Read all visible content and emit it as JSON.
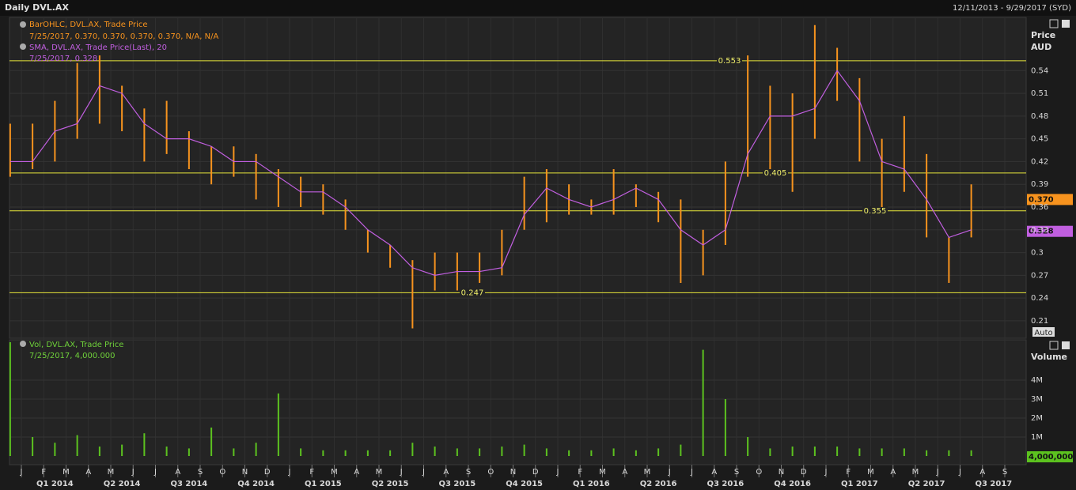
{
  "header": {
    "title": "Daily DVL.AX",
    "range": "12/11/2013 - 9/29/2017 (SYD)"
  },
  "x_axis": {
    "months": [
      "J",
      "F",
      "M",
      "A",
      "M",
      "J",
      "J",
      "A",
      "S",
      "O",
      "N",
      "D",
      "J",
      "F",
      "M",
      "A",
      "M",
      "J",
      "J",
      "A",
      "S",
      "O",
      "N",
      "D",
      "J",
      "F",
      "M",
      "A",
      "M",
      "J",
      "J",
      "A",
      "S",
      "O",
      "N",
      "D",
      "J",
      "F",
      "M",
      "A",
      "M",
      "J",
      "J",
      "A",
      "S"
    ],
    "quarters": [
      "Q1 2014",
      "Q2 2014",
      "Q3 2014",
      "Q4 2014",
      "Q1 2015",
      "Q2 2015",
      "Q3 2015",
      "Q4 2015",
      "Q1 2016",
      "Q2 2016",
      "Q3 2016",
      "Q4 2016",
      "Q1 2017",
      "Q2 2017",
      "Q3 2017"
    ]
  },
  "chart_data": [
    {
      "type": "ohlc",
      "y_title": "Price",
      "y_unit": "AUD",
      "scale_mode": "Auto",
      "x": [
        "2013-12",
        "2014-01",
        "2014-02",
        "2014-03",
        "2014-04",
        "2014-05",
        "2014-06",
        "2014-07",
        "2014-08",
        "2014-09",
        "2014-10",
        "2014-11",
        "2014-12",
        "2015-01",
        "2015-02",
        "2015-03",
        "2015-04",
        "2015-05",
        "2015-06",
        "2015-07",
        "2015-08",
        "2015-09",
        "2015-10",
        "2015-11",
        "2015-12",
        "2016-01",
        "2016-02",
        "2016-03",
        "2016-04",
        "2016-05",
        "2016-06",
        "2016-07",
        "2016-08",
        "2016-09",
        "2016-10",
        "2016-11",
        "2016-12",
        "2017-01",
        "2017-02",
        "2017-03",
        "2017-04",
        "2017-05",
        "2017-06",
        "2017-07"
      ],
      "series": [
        {
          "name": "BarOHLC, DVL.AX, Trade Price",
          "detail": "7/25/2017, 0.370, 0.370, 0.370, 0.370, N/A, N/A",
          "color": "#f7931e",
          "high": [
            0.47,
            0.47,
            0.5,
            0.55,
            0.56,
            0.52,
            0.49,
            0.5,
            0.46,
            0.44,
            0.44,
            0.43,
            0.41,
            0.4,
            0.39,
            0.37,
            0.33,
            0.31,
            0.29,
            0.3,
            0.3,
            0.3,
            0.33,
            0.4,
            0.41,
            0.39,
            0.37,
            0.41,
            0.39,
            0.38,
            0.37,
            0.33,
            0.42,
            0.56,
            0.52,
            0.51,
            0.6,
            0.57,
            0.53,
            0.45,
            0.48,
            0.43,
            0.32,
            0.39
          ],
          "low": [
            0.4,
            0.41,
            0.42,
            0.45,
            0.47,
            0.46,
            0.42,
            0.43,
            0.41,
            0.39,
            0.4,
            0.37,
            0.36,
            0.36,
            0.35,
            0.33,
            0.3,
            0.28,
            0.2,
            0.25,
            0.25,
            0.26,
            0.27,
            0.33,
            0.34,
            0.35,
            0.35,
            0.35,
            0.36,
            0.34,
            0.26,
            0.27,
            0.31,
            0.4,
            0.41,
            0.38,
            0.45,
            0.5,
            0.42,
            0.36,
            0.38,
            0.32,
            0.26,
            0.32
          ]
        },
        {
          "name": "SMA, DVL.AX, Trade Price(Last),  20",
          "detail": "7/25/2017, 0.328",
          "color": "#c15fe0",
          "values": [
            0.42,
            0.42,
            0.46,
            0.47,
            0.52,
            0.51,
            0.47,
            0.45,
            0.45,
            0.44,
            0.42,
            0.42,
            0.4,
            0.38,
            0.38,
            0.36,
            0.33,
            0.31,
            0.28,
            0.27,
            0.275,
            0.275,
            0.28,
            0.35,
            0.385,
            0.37,
            0.36,
            0.37,
            0.385,
            0.37,
            0.33,
            0.31,
            0.33,
            0.43,
            0.48,
            0.48,
            0.49,
            0.54,
            0.5,
            0.42,
            0.41,
            0.37,
            0.32,
            0.33
          ]
        }
      ],
      "hlines": [
        0.553,
        0.405,
        0.355,
        0.247
      ],
      "last_labels": [
        {
          "value": 0.37,
          "label": "0.370",
          "color": "#f7931e"
        },
        {
          "value": 0.328,
          "color": "#c15fe0"
        }
      ],
      "ylim": [
        0.187,
        0.607
      ],
      "yticks": [
        0.21,
        0.24,
        0.27,
        0.3,
        0.33,
        0.36,
        0.39,
        0.42,
        0.45,
        0.48,
        0.51,
        0.54
      ]
    },
    {
      "type": "volume",
      "y_title": "Volume",
      "series": [
        {
          "name": "Vol, DVL.AX, Trade Price",
          "detail": "7/25/2017, 4,000.000",
          "color": "#5cc21f",
          "values": [
            6000000,
            1000000,
            700000,
            1100000,
            500000,
            600000,
            1200000,
            500000,
            400000,
            1500000,
            400000,
            700000,
            3300000,
            400000,
            300000,
            300000,
            300000,
            300000,
            700000,
            500000,
            400000,
            400000,
            500000,
            600000,
            400000,
            300000,
            300000,
            400000,
            300000,
            400000,
            600000,
            5600000,
            3000000,
            1000000,
            400000,
            500000,
            500000,
            500000,
            400000,
            400000,
            400000,
            300000,
            300000,
            300000
          ]
        }
      ],
      "last_label": "4,000,000",
      "ylim": [
        0,
        6000000
      ],
      "yticks": [
        {
          "value": 1000000,
          "label": "1M"
        },
        {
          "value": 2000000,
          "label": "2M"
        },
        {
          "value": 3000000,
          "label": "3M"
        },
        {
          "value": 4000000,
          "label": "4M"
        }
      ]
    }
  ]
}
